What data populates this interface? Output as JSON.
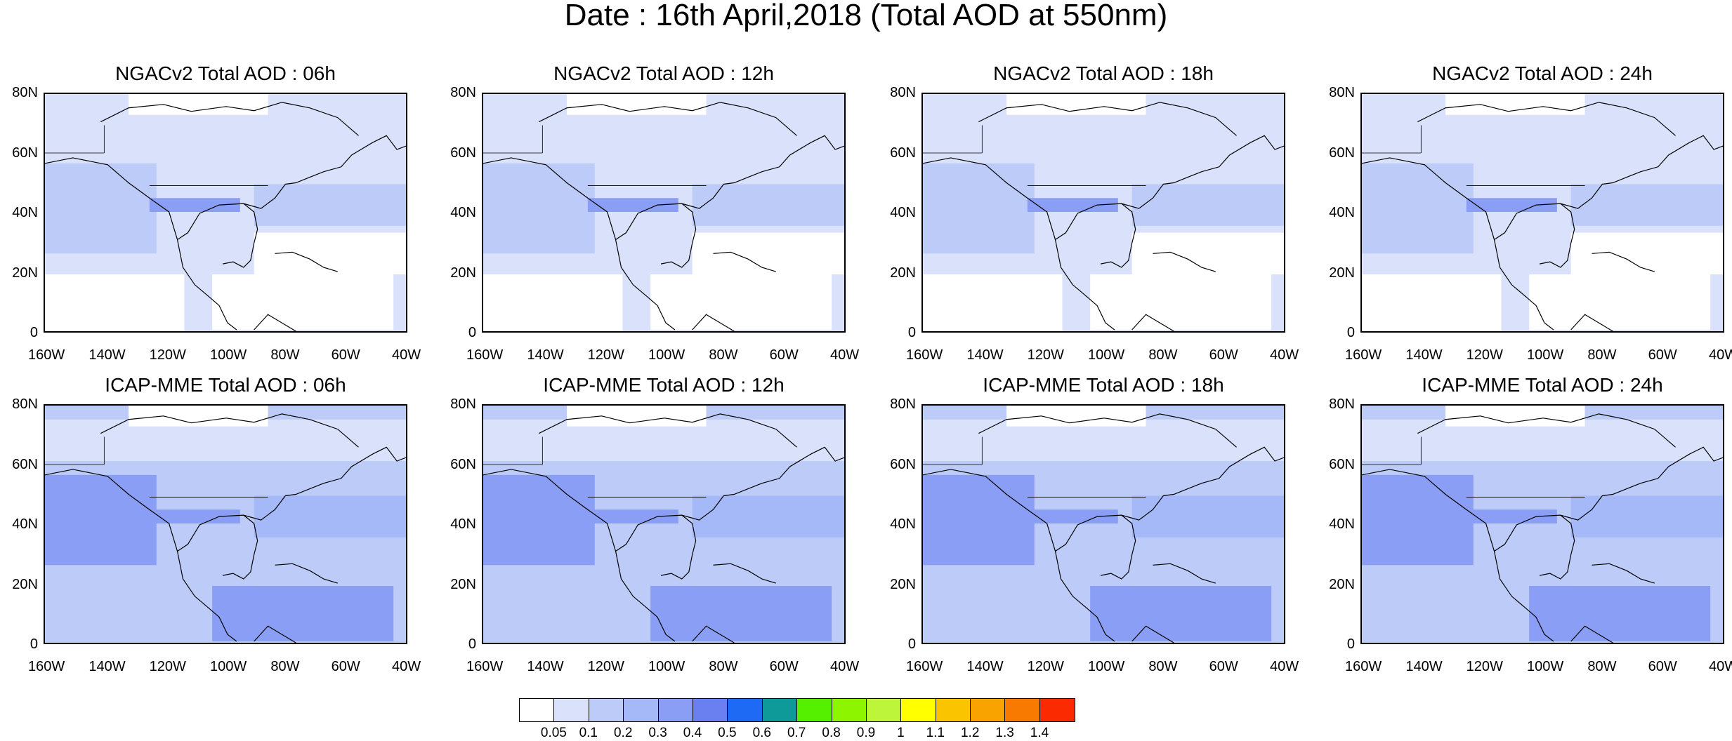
{
  "title": "Date : 16th April,2018 (Total AOD at 550nm)",
  "panels": [
    {
      "title": "NGACv2 Total AOD : 06h",
      "model": "NGACv2",
      "hour": "06h"
    },
    {
      "title": "NGACv2 Total AOD : 12h",
      "model": "NGACv2",
      "hour": "12h"
    },
    {
      "title": "NGACv2 Total AOD : 18h",
      "model": "NGACv2",
      "hour": "18h"
    },
    {
      "title": "NGACv2 Total AOD : 24h",
      "model": "NGACv2",
      "hour": "24h"
    },
    {
      "title": "ICAP-MME Total AOD : 06h",
      "model": "ICAP-MME",
      "hour": "06h"
    },
    {
      "title": "ICAP-MME Total AOD : 12h",
      "model": "ICAP-MME",
      "hour": "12h"
    },
    {
      "title": "ICAP-MME Total AOD : 18h",
      "model": "ICAP-MME",
      "hour": "18h"
    },
    {
      "title": "ICAP-MME Total AOD : 24h",
      "model": "ICAP-MME",
      "hour": "24h"
    }
  ],
  "lat_labels": [
    "80N",
    "60N",
    "40N",
    "20N",
    "0"
  ],
  "lon_labels": [
    "160W",
    "140W",
    "120W",
    "100W",
    "80W",
    "60W",
    "40W"
  ],
  "colorbar": {
    "labels": [
      "0.05",
      "0.1",
      "0.2",
      "0.3",
      "0.4",
      "0.5",
      "0.6",
      "0.7",
      "0.8",
      "0.9",
      "1",
      "1.1",
      "1.2",
      "1.3",
      "1.4"
    ],
    "colors": [
      "#ffffff",
      "#d9e1fb",
      "#bccbf8",
      "#a5b8f7",
      "#8a9ef5",
      "#6a80f0",
      "#1f6af4",
      "#0f9a9a",
      "#54f000",
      "#8df500",
      "#bdf53a",
      "#ffff00",
      "#fbc400",
      "#f9a300",
      "#f87b00",
      "#fb2a00"
    ]
  },
  "map_colors": {
    "land_outline": "#000000",
    "low": "#d9e1fb",
    "mid": "#bccbf8",
    "high": "#a5b8f7",
    "higher": "#8a9ef5",
    "clear": "#ffffff"
  }
}
